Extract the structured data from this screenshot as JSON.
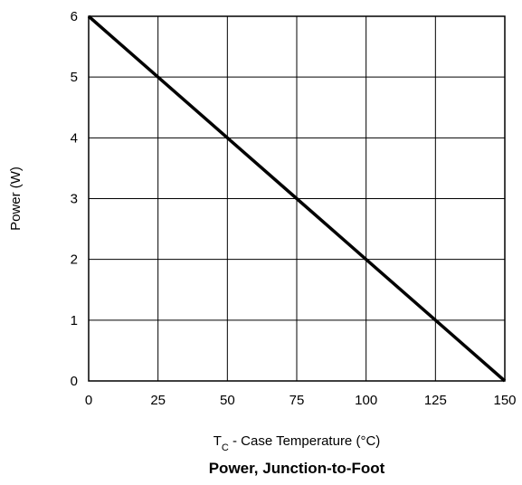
{
  "chart_data": {
    "type": "line",
    "title": "Power, Junction-to-Foot",
    "xlabel": {
      "prefix": "T",
      "subscript": "C",
      "suffix": " - Case Temperature (°C)"
    },
    "ylabel": "Power (W)",
    "xlim": [
      0,
      150
    ],
    "ylim": [
      0,
      6
    ],
    "x_ticks": [
      0,
      25,
      50,
      75,
      100,
      125,
      150
    ],
    "y_ticks": [
      0,
      1,
      2,
      3,
      4,
      5,
      6
    ],
    "grid": true,
    "legend": "none",
    "series": [
      {
        "color": "#000000",
        "x": [
          0,
          25,
          50,
          75,
          100,
          125,
          150
        ],
        "y": [
          6,
          5,
          4,
          3,
          2,
          1,
          0
        ]
      }
    ]
  }
}
